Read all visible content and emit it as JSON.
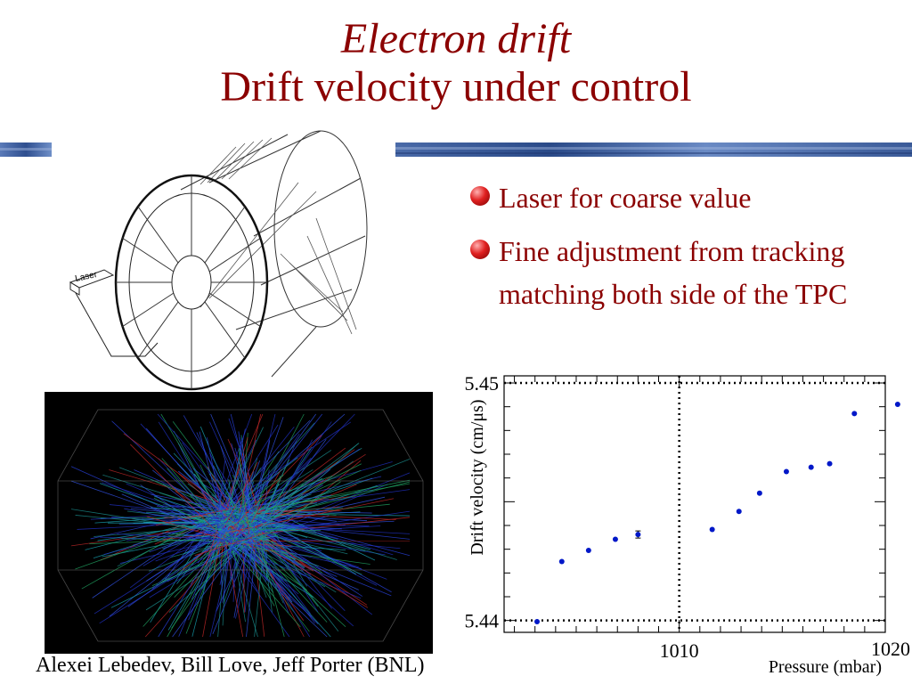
{
  "slide": {
    "title_line1": "Electron drift",
    "title_line2": "Drift velocity under control",
    "bullets": [
      {
        "text": "Laser for coarse value"
      },
      {
        "text": "Fine adjustment from tracking matching both side of the TPC"
      }
    ],
    "laser_label": "Laser",
    "footer": "Alexei Lebedev, Bill Love, Jeff Porter (BNL)",
    "accent_color": "#8b0000",
    "band_color": "#3f5f9a"
  },
  "chart_data": {
    "type": "scatter",
    "xlabel": "Pressure (mbar)",
    "ylabel": "Drift velocity (cm/μs)",
    "xlim": [
      1001.5,
      1020
    ],
    "ylim": [
      5.4395,
      5.4503
    ],
    "x_tick_labels": [
      {
        "value": 1010,
        "label": "1010"
      },
      {
        "value": 1020,
        "label": "1020"
      }
    ],
    "y_tick_labels": [
      {
        "value": 5.45,
        "label": "5.45"
      },
      {
        "value": 5.44,
        "label": "5.44"
      }
    ],
    "y_minor_ticks": [
      5.441,
      5.442,
      5.443,
      5.444,
      5.445,
      5.446,
      5.447,
      5.448,
      5.449
    ],
    "reference_lines": {
      "x": 1010,
      "y_values": [
        5.44,
        5.45
      ]
    },
    "series": [
      {
        "points": [
          {
            "x": 1003.1,
            "y": 5.43995,
            "err": 0
          },
          {
            "x": 1004.3,
            "y": 5.44248,
            "err": 0
          },
          {
            "x": 1005.6,
            "y": 5.44295,
            "err": 0
          },
          {
            "x": 1006.9,
            "y": 5.44342,
            "err": 0
          },
          {
            "x": 1008.0,
            "y": 5.44362,
            "err": 0.00015
          },
          {
            "x": 1011.6,
            "y": 5.44383,
            "err": 0
          },
          {
            "x": 1012.9,
            "y": 5.44459,
            "err": 0
          },
          {
            "x": 1013.9,
            "y": 5.44536,
            "err": 0
          },
          {
            "x": 1015.2,
            "y": 5.44627,
            "err": 0
          },
          {
            "x": 1016.4,
            "y": 5.44645,
            "err": 0
          },
          {
            "x": 1017.3,
            "y": 5.4466,
            "err": 0
          },
          {
            "x": 1018.5,
            "y": 5.44871,
            "err": 0
          },
          {
            "x": 1020.6,
            "y": 5.4491,
            "err": 0
          }
        ]
      }
    ]
  }
}
